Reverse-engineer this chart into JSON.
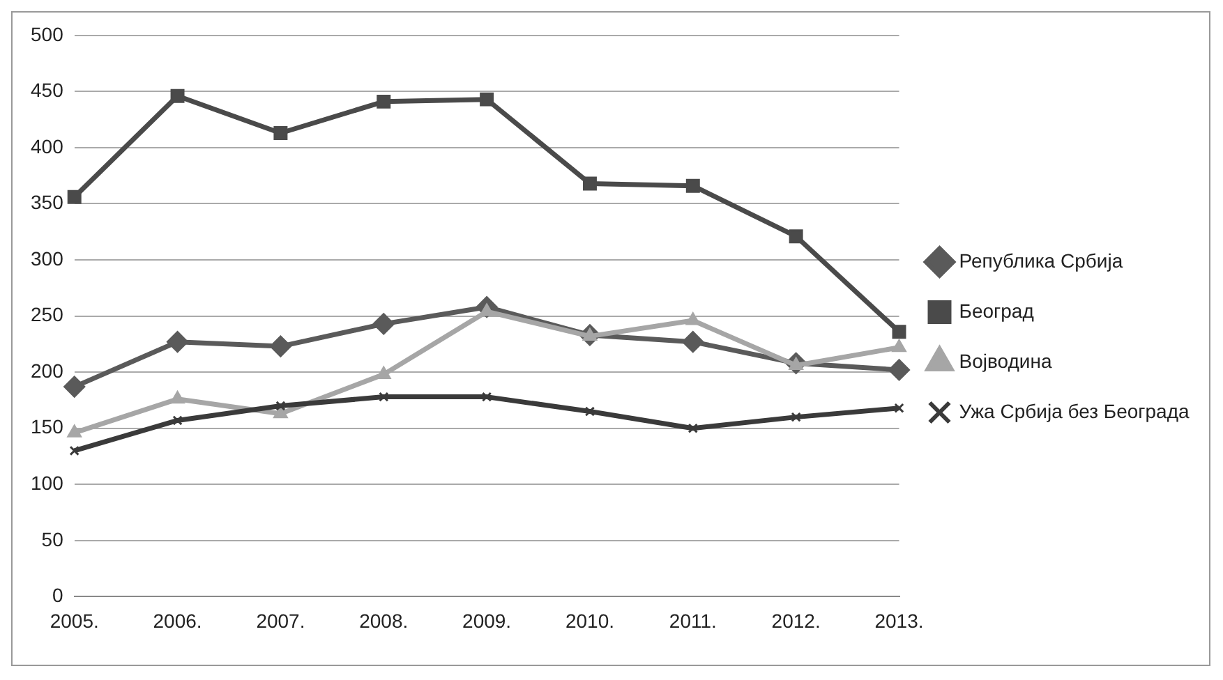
{
  "chart_data": {
    "type": "line",
    "categories": [
      "2005.",
      "2006.",
      "2007.",
      "2008.",
      "2009.",
      "2010.",
      "2011.",
      "2012.",
      "2013."
    ],
    "series": [
      {
        "name": "Република Србија",
        "color": "#5a5a5a",
        "marker": "diamond",
        "values": [
          187,
          227,
          223,
          243,
          258,
          233,
          227,
          208,
          202
        ]
      },
      {
        "name": "Београд",
        "color": "#4a4a4a",
        "marker": "square",
        "values": [
          356,
          446,
          413,
          441,
          443,
          368,
          366,
          321,
          236
        ]
      },
      {
        "name": "Војводина",
        "color": "#a6a6a6",
        "marker": "triangle",
        "values": [
          146,
          176,
          163,
          198,
          254,
          232,
          246,
          206,
          222
        ]
      },
      {
        "name": "Ужа Србија без Београда",
        "color": "#3a3a3a",
        "marker": "cross",
        "values": [
          130,
          157,
          170,
          178,
          178,
          165,
          150,
          160,
          168
        ]
      }
    ],
    "ylim": [
      0,
      500
    ],
    "yticks": [
      0,
      50,
      100,
      150,
      200,
      250,
      300,
      350,
      400,
      450,
      500
    ],
    "grid": "y",
    "legend": "right"
  }
}
